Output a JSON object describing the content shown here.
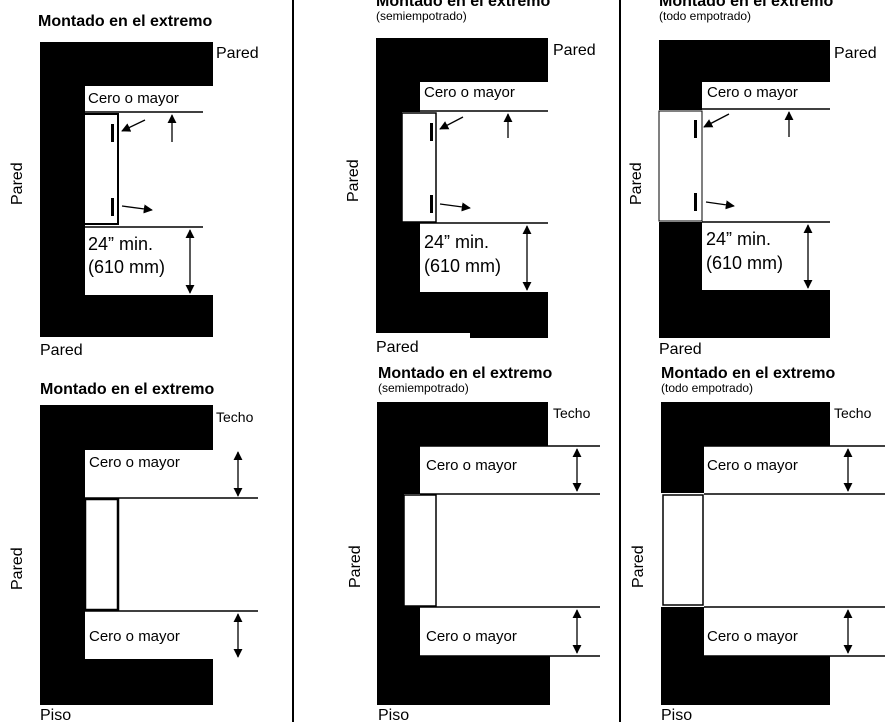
{
  "diagrams": {
    "top_left": {
      "title": "Montado en el extremo",
      "subtitle": "",
      "top_label": "Pared",
      "side_label": "Pared",
      "bottom_label": "Pared",
      "gap_label": "Cero o mayor",
      "min_line1": "24” min.",
      "min_line2": "(610 mm)"
    },
    "top_mid": {
      "title": "Montado en el extremo",
      "subtitle": "(semiempotrado)",
      "top_label": "Pared",
      "side_label": "Pared",
      "bottom_label": "Pared",
      "gap_label": "Cero o mayor",
      "min_line1": "24” min.",
      "min_line2": "(610 mm)"
    },
    "top_right": {
      "title": "Montado en el extremo",
      "subtitle": "(todo empotrado)",
      "top_label": "Pared",
      "side_label": "Pared",
      "bottom_label": "Pared",
      "gap_label": "Cero o mayor",
      "min_line1": "24” min.",
      "min_line2": "(610 mm)"
    },
    "bottom_left": {
      "title": "Montado en el extremo",
      "subtitle": "",
      "top_label": "Techo",
      "side_label": "Pared",
      "bottom_label": "Piso",
      "gap_top_label": "Cero o mayor",
      "gap_bottom_label": "Cero o mayor"
    },
    "bottom_mid": {
      "title": "Montado en el extremo",
      "subtitle": "(semiempotrado)",
      "top_label": "Techo",
      "side_label": "Pared",
      "bottom_label": "Piso",
      "gap_top_label": "Cero o mayor",
      "gap_bottom_label": "Cero o mayor"
    },
    "bottom_right": {
      "title": "Montado en el extremo",
      "subtitle": "(todo empotrado)",
      "top_label": "Techo",
      "side_label": "Pared",
      "bottom_label": "Piso",
      "gap_top_label": "Cero o mayor",
      "gap_bottom_label": "Cero o mayor"
    }
  }
}
